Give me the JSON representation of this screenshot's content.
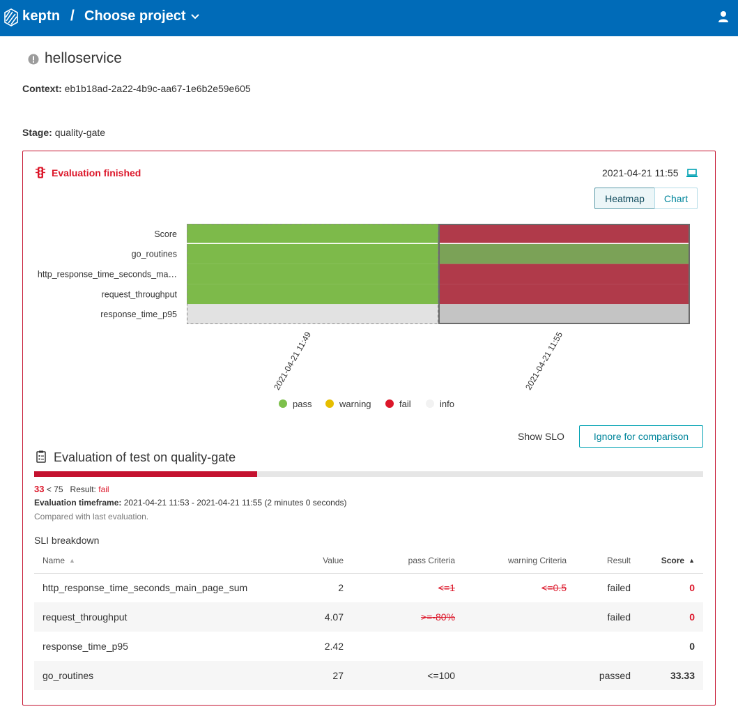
{
  "header": {
    "brand": "keptn",
    "separator": "/",
    "project_label": "Choose project"
  },
  "service": {
    "name": "helloservice",
    "context_label": "Context:",
    "context_value": "eb1b18ad-2a22-4b9c-aa67-1e6b2e59e605",
    "stage_label": "Stage:",
    "stage_value": "quality-gate"
  },
  "evaluation": {
    "status": "Evaluation finished",
    "date": "2021-04-21 11:55",
    "view_tabs": [
      "Heatmap",
      "Chart"
    ],
    "selected_view": "Heatmap",
    "show_slo_label": "Show SLO",
    "ignore_button": "Ignore for comparison",
    "test_title": "Evaluation of test on quality-gate",
    "score": "33",
    "score_compare": "< 75",
    "result_label": "Result:",
    "result_value": "fail",
    "progress_percent": 33.33,
    "timeframe_label": "Evaluation timeframe:",
    "timeframe_value": "2021-04-21 11:53 - 2021-04-21 11:55 (2 minutes 0 seconds)",
    "compared_text": "Compared with last evaluation.",
    "sli_breakdown_title": "SLI breakdown"
  },
  "heatmap": {
    "rows": [
      "Score",
      "go_routines",
      "http_response_time_seconds_ma…",
      "request_throughput",
      "response_time_p95"
    ],
    "columns": [
      "2021-04-21 11:49",
      "2021-04-21 11:55"
    ],
    "cells": [
      [
        "pass",
        "fail"
      ],
      [
        "pass",
        "pass"
      ],
      [
        "pass",
        "fail"
      ],
      [
        "pass",
        "fail"
      ],
      [
        "info",
        "info"
      ]
    ],
    "selected_column": 1,
    "colors": {
      "pass": "#7dba4a",
      "pass_selected": "#7ba257",
      "fail_selected": "#b03a4a",
      "info": "#e2e2e2",
      "info_selected": "#c4c4c4"
    },
    "legend": [
      {
        "label": "pass",
        "color": "#7dc04b"
      },
      {
        "label": "warning",
        "color": "#e6be00"
      },
      {
        "label": "fail",
        "color": "#dc172a"
      },
      {
        "label": "info",
        "color": "#f2f2f2"
      }
    ]
  },
  "sli_table": {
    "columns": [
      "Name",
      "Value",
      "pass Criteria",
      "warning Criteria",
      "Result",
      "Score"
    ],
    "rows": [
      {
        "name": "http_response_time_seconds_main_page_sum",
        "value": "2",
        "pass": "<=1",
        "warning": "<=0.5",
        "result": "failed",
        "score": "0"
      },
      {
        "name": "request_throughput",
        "value": "4.07",
        "pass": ">=-80%",
        "warning": "",
        "result": "failed",
        "score": "0"
      },
      {
        "name": "response_time_p95",
        "value": "2.42",
        "pass": "",
        "warning": "",
        "result": "",
        "score": "0"
      },
      {
        "name": "go_routines",
        "value": "27",
        "pass": "<=100",
        "warning": "",
        "result": "passed",
        "score": "33.33"
      }
    ]
  }
}
